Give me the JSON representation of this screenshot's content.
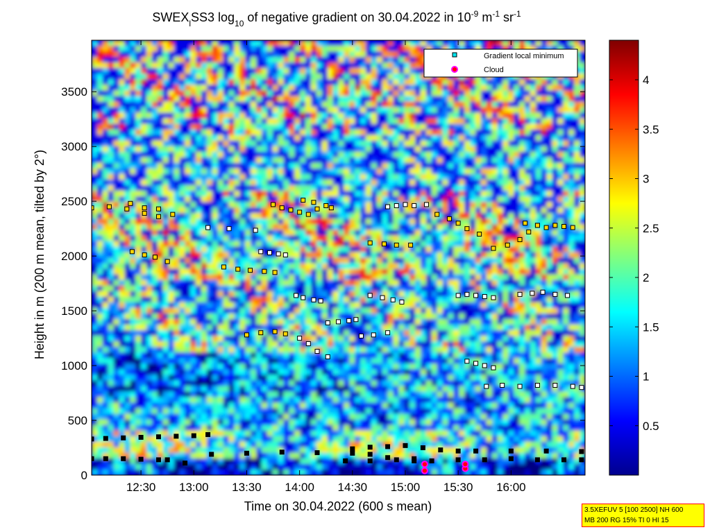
{
  "chart_data": {
    "type": "heatmap",
    "title": {
      "prefix": "SWEX",
      "subscript1": "l",
      "mid1": "SS3 log",
      "subscript2": "10",
      "mid2": " of negative gradient on 30.04.2022 in 10",
      "sup1": "-9",
      "mid3": " m",
      "sup2": "-1",
      "mid4": " sr",
      "sup3": "-1"
    },
    "xlabel": "Time on 30.04.2022 (600 s mean)",
    "ylabel": "Height in m (200 m mean, tilted by 2°)",
    "x_ticks": [
      "12:30",
      "13:00",
      "13:30",
      "14:00",
      "14:30",
      "15:00",
      "15:30",
      "16:00"
    ],
    "x_tick_minutes": [
      750,
      780,
      810,
      840,
      870,
      900,
      930,
      960
    ],
    "xlim_minutes": [
      722,
      1002
    ],
    "y_ticks": [
      "0",
      "500",
      "1000",
      "1500",
      "2000",
      "2500",
      "3000",
      "3500"
    ],
    "y_tick_values": [
      0,
      500,
      1000,
      1500,
      2000,
      2500,
      3000,
      3500
    ],
    "ylim": [
      0,
      3970
    ],
    "colorbar": {
      "range": [
        0,
        4.4
      ],
      "ticks": [
        "0.5",
        "1",
        "1.5",
        "2",
        "2.5",
        "3",
        "3.5",
        "4"
      ],
      "tick_values": [
        0.5,
        1,
        1.5,
        2,
        2.5,
        3,
        3.5,
        4
      ]
    },
    "legend": {
      "position": "top-right",
      "entries": [
        {
          "label": "Gradient local minimum",
          "marker": "square",
          "color": "#00e5ee"
        },
        {
          "label": "Cloud",
          "marker": "circle",
          "color": "#ff0000",
          "edge": "#ff00ff"
        }
      ]
    },
    "series": [
      {
        "name": "Gradient local minimum",
        "tracks": [
          {
            "x": [
              722,
              730,
              740,
              750,
              760,
              770,
              780,
              788
            ],
            "y": [
              330,
              335,
              340,
              345,
              350,
              355,
              360,
              370
            ],
            "c": "#000000"
          },
          {
            "x": [
              722,
              730,
              740,
              750,
              760,
              765
            ],
            "y": [
              150,
              150,
              150,
              145,
              140,
              140
            ],
            "c": "#000000"
          },
          {
            "x": [
              775,
              790,
              810,
              830,
              850,
              870,
              880,
              890,
              905
            ],
            "y": [
              110,
              190,
              200,
              210,
              205,
              200,
              190,
              160,
              150
            ],
            "c": "#000000"
          },
          {
            "x": [
              866,
              880,
              895,
              905,
              915,
              930,
              945,
              960,
              975,
              990,
              1000
            ],
            "y": [
              130,
              130,
              140,
              130,
              130,
              140,
              140,
              150,
              140,
              140,
              140
            ],
            "c": "#000000"
          },
          {
            "x": [
              870,
              880,
              890,
              900,
              910,
              920,
              930,
              940,
              960,
              980,
              1000
            ],
            "y": [
              240,
              255,
              260,
              270,
              250,
              230,
              220,
              220,
              220,
              220,
              215
            ],
            "c": "#000000"
          },
          {
            "x": [
              722,
              732,
              742,
              752,
              760
            ],
            "y": [
              2440,
              2450,
              2430,
              2390,
              2360
            ],
            "c": "#ffd700"
          },
          {
            "x": [
              744,
              752,
              760,
              768
            ],
            "y": [
              2480,
              2440,
              2430,
              2380
            ],
            "c": "#ffd700"
          },
          {
            "x": [
              788,
              800,
              815
            ],
            "y": [
              2260,
              2250,
              2235
            ],
            "c": "#ffffff"
          },
          {
            "x": [
              825,
              830,
              835,
              840,
              845,
              850
            ],
            "y": [
              2470,
              2440,
              2420,
              2400,
              2380,
              2430
            ],
            "c": "#ffd700"
          },
          {
            "x": [
              842,
              848,
              855,
              858
            ],
            "y": [
              2510,
              2490,
              2460,
              2440
            ],
            "c": "#ffd700"
          },
          {
            "x": [
              890,
              895,
              900,
              905,
              912
            ],
            "y": [
              2450,
              2460,
              2470,
              2460,
              2470
            ],
            "c": "#ffffff"
          },
          {
            "x": [
              880,
              888,
              895,
              903
            ],
            "y": [
              2120,
              2110,
              2100,
              2100
            ],
            "c": "#ffd700"
          },
          {
            "x": [
              918,
              925,
              930,
              935,
              942
            ],
            "y": [
              2380,
              2340,
              2300,
              2250,
              2200
            ],
            "c": "#ffd700"
          },
          {
            "x": [
              950,
              958,
              965,
              970,
              975
            ],
            "y": [
              2070,
              2100,
              2150,
              2220,
              2280
            ],
            "c": "#ffd700"
          },
          {
            "x": [
              968,
              975,
              980,
              985,
              990,
              995
            ],
            "y": [
              2300,
              2280,
              2260,
              2280,
              2270,
              2260
            ],
            "c": "#ffd700"
          },
          {
            "x": [
              745,
              752,
              758,
              765
            ],
            "y": [
              2040,
              2010,
              1990,
              1950
            ],
            "c": "#ffd700"
          },
          {
            "x": [
              797,
              805,
              812,
              820,
              826
            ],
            "y": [
              1900,
              1880,
              1870,
              1860,
              1850
            ],
            "c": "#ffd700"
          },
          {
            "x": [
              818,
              823,
              828,
              832
            ],
            "y": [
              2040,
              2030,
              2020,
              2010
            ],
            "c": "#ffffff"
          },
          {
            "x": [
              838,
              842,
              848,
              852
            ],
            "y": [
              1640,
              1620,
              1600,
              1590
            ],
            "c": "#ffffff"
          },
          {
            "x": [
              856,
              862,
              868,
              872
            ],
            "y": [
              1390,
              1400,
              1410,
              1420
            ],
            "c": "#ffffff"
          },
          {
            "x": [
              840,
              845,
              850,
              856
            ],
            "y": [
              1250,
              1200,
              1130,
              1080
            ],
            "c": "#ffffff"
          },
          {
            "x": [
              880,
              887,
              893,
              898
            ],
            "y": [
              1640,
              1620,
              1600,
              1580
            ],
            "c": "#ffffff"
          },
          {
            "x": [
              875,
              882,
              890
            ],
            "y": [
              1270,
              1280,
              1300
            ],
            "c": "#ffffff"
          },
          {
            "x": [
              810,
              818,
              826,
              832
            ],
            "y": [
              1280,
              1300,
              1310,
              1290
            ],
            "c": "#ffd700"
          },
          {
            "x": [
              935,
              940,
              945,
              950
            ],
            "y": [
              1040,
              1020,
              1000,
              980
            ],
            "c": "#ffffff"
          },
          {
            "x": [
              946,
              955,
              965,
              975,
              985,
              995,
              1000
            ],
            "y": [
              810,
              820,
              810,
              820,
              820,
              810,
              800
            ],
            "c": "#ffffff"
          },
          {
            "x": [
              930,
              935,
              940,
              945,
              950
            ],
            "y": [
              1640,
              1650,
              1640,
              1630,
              1620
            ],
            "c": "#ffffff"
          },
          {
            "x": [
              965,
              972,
              978,
              985,
              992
            ],
            "y": [
              1650,
              1660,
              1670,
              1650,
              1640
            ],
            "c": "#ffffff"
          }
        ]
      },
      {
        "name": "Cloud",
        "x": [
          911,
          911,
          934,
          934
        ],
        "y": [
          40,
          100,
          60,
          100
        ]
      }
    ]
  },
  "info_box": {
    "line1": "3.5XEFUV 5 [100 2500] NH 600",
    "line2": "MB 200 RG 15% TI 0 HI 15"
  }
}
